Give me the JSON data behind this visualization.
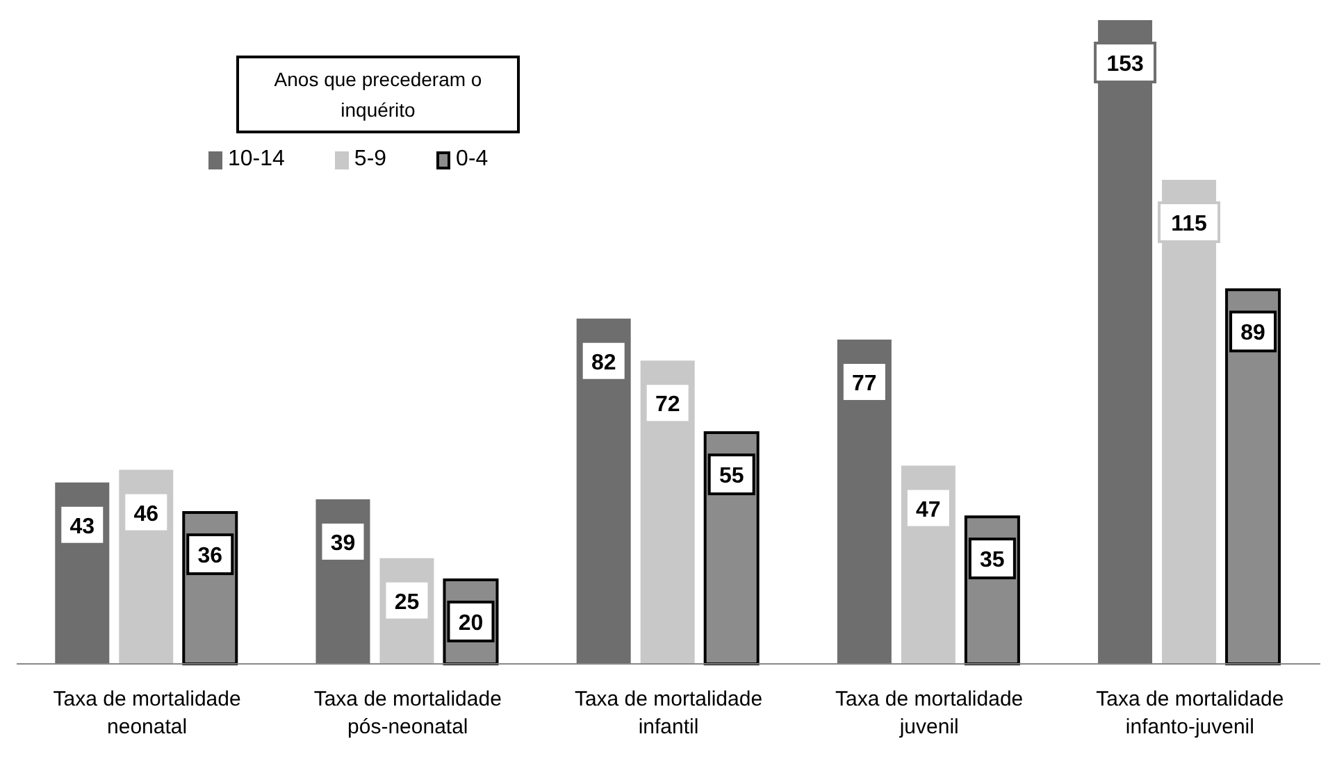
{
  "chart_data": {
    "type": "bar",
    "legend_title": "Anos que precederam o inquérito",
    "legend": "top left",
    "data_labels": true,
    "categories": [
      "Taxa de mortalidade neonatal",
      "Taxa de mortalidade pós-neonatal",
      "Taxa de mortalidade infantil",
      "Taxa de mortalidade juvenil",
      "Taxa de mortalidade infanto-juvenil"
    ],
    "series": [
      {
        "name": "10-14",
        "color": "#6e6e6e",
        "values": [
          43,
          39,
          82,
          77,
          153
        ]
      },
      {
        "name": "5-9",
        "color": "#c8c8c8",
        "values": [
          46,
          25,
          72,
          47,
          115
        ]
      },
      {
        "name": "0-4",
        "color": "#8c8c8c",
        "values": [
          36,
          20,
          55,
          35,
          89
        ]
      }
    ]
  }
}
